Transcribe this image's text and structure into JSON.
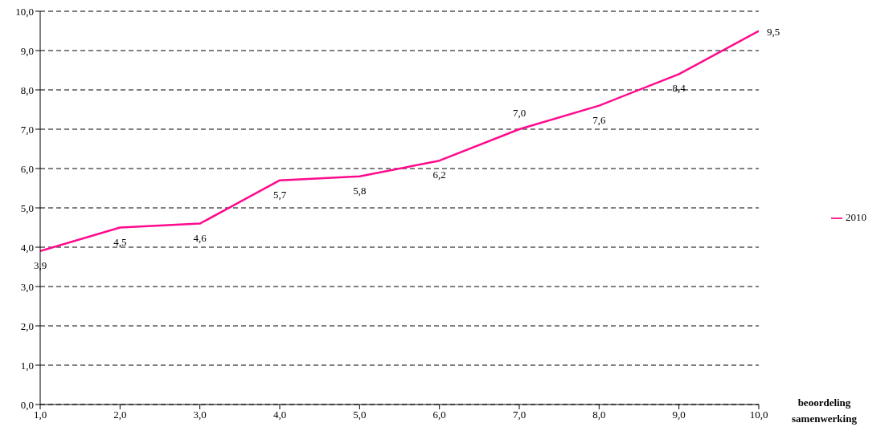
{
  "chart_data": {
    "type": "line",
    "xlabel": "beoordeling samenwerking",
    "x": [
      1,
      2,
      3,
      4,
      5,
      6,
      7,
      8,
      9,
      10
    ],
    "series": [
      {
        "name": "2010",
        "color": "#ff0a8c",
        "values": [
          3.9,
          4.5,
          4.6,
          5.7,
          5.8,
          6.2,
          7.0,
          7.6,
          8.4,
          9.5
        ],
        "value_labels": [
          "3,9",
          "4,5",
          "4,6",
          "5,7",
          "5,8",
          "6,2",
          "7,0",
          "7,6",
          "8,4",
          "9,5"
        ]
      }
    ],
    "xlim": [
      1,
      10
    ],
    "xticks": [
      {
        "value": 1,
        "label": "1,0"
      },
      {
        "value": 2,
        "label": "2,0"
      },
      {
        "value": 3,
        "label": "3,0"
      },
      {
        "value": 4,
        "label": "4,0"
      },
      {
        "value": 5,
        "label": "5,0"
      },
      {
        "value": 6,
        "label": "6,0"
      },
      {
        "value": 7,
        "label": "7,0"
      },
      {
        "value": 8,
        "label": "8,0"
      },
      {
        "value": 9,
        "label": "9,0"
      },
      {
        "value": 10,
        "label": "10,0"
      }
    ],
    "ylim": [
      0,
      10
    ],
    "yticks": [
      {
        "value": 0,
        "label": "0,0"
      },
      {
        "value": 1,
        "label": "1,0"
      },
      {
        "value": 2,
        "label": "2,0"
      },
      {
        "value": 3,
        "label": "3,0"
      },
      {
        "value": 4,
        "label": "4,0"
      },
      {
        "value": 5,
        "label": "5,0"
      },
      {
        "value": 6,
        "label": "6,0"
      },
      {
        "value": 7,
        "label": "7,0"
      },
      {
        "value": 8,
        "label": "8,0"
      },
      {
        "value": 9,
        "label": "9,0"
      },
      {
        "value": 10,
        "label": "10,0"
      }
    ],
    "grid": "y",
    "legend": "right",
    "marker": "none",
    "line_style": "solid"
  }
}
